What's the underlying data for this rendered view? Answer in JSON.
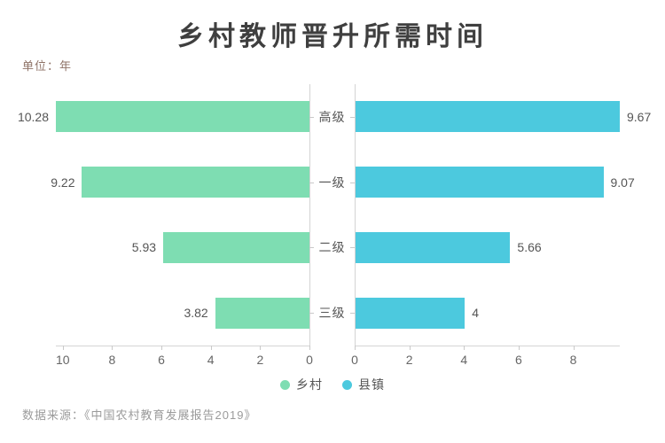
{
  "title": "乡村教师晋升所需时间",
  "unit_label": "单位：年",
  "source_label": "数据来源：《中国农村教育发展报告2019》",
  "colors": {
    "rural_green": "#7EDDB2",
    "town_blue": "#4CC9DE",
    "axis_line": "#d4d4d4",
    "tick_text": "#666666",
    "value_text": "#555555",
    "category_text": "#555555",
    "title_text": "#3f3f3f",
    "unit_text": "#8e7266",
    "source_text": "#9b9b9b"
  },
  "chart_data": {
    "type": "bar",
    "variant": "diverging-horizontal-pyramid",
    "title": "乡村教师晋升所需时间",
    "unit": "年",
    "categories": [
      "高级",
      "一级",
      "二级",
      "三级"
    ],
    "series": [
      {
        "name": "乡村",
        "side": "left",
        "color": "#7EDDB2",
        "values": [
          10.28,
          9.22,
          5.93,
          3.82
        ],
        "labels": [
          "10.28",
          "9.22",
          "5.93",
          "3.82"
        ],
        "axis_ticks": [
          10,
          8,
          6,
          4,
          2,
          0
        ],
        "xlim": [
          0,
          10.28
        ],
        "axis_reversed": true
      },
      {
        "name": "县镇",
        "side": "right",
        "color": "#4CC9DE",
        "values": [
          9.67,
          9.07,
          5.66,
          4
        ],
        "labels": [
          "9.67",
          "9.07",
          "5.66",
          "4"
        ],
        "axis_ticks": [
          0,
          2,
          4,
          6,
          8
        ],
        "xlim": [
          0,
          9.67
        ],
        "axis_reversed": false
      }
    ],
    "legend": {
      "position": "bottom",
      "items": [
        {
          "label": "乡村",
          "color": "#7EDDB2"
        },
        {
          "label": "县镇",
          "color": "#4CC9DE"
        }
      ]
    },
    "grid": false,
    "source": "数据来源：《中国农村教育发展报告2019》"
  }
}
